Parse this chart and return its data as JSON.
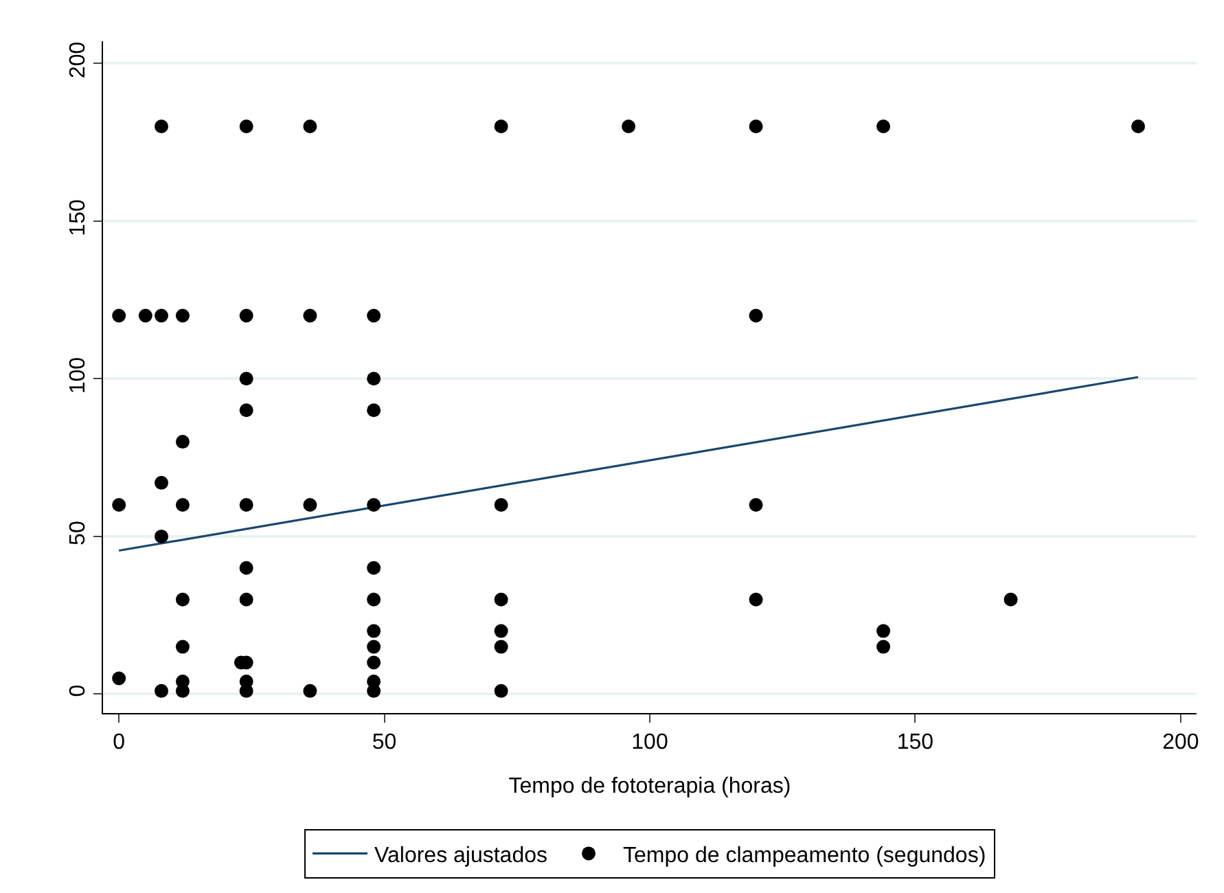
{
  "chart_data": {
    "type": "scatter",
    "xlabel": "Tempo de fototerapia (horas)",
    "xlim": [
      -3,
      203
    ],
    "ylim": [
      -6,
      207
    ],
    "xticks": [
      0,
      50,
      100,
      150,
      200
    ],
    "yticks": [
      0,
      50,
      100,
      150,
      200
    ],
    "grid": "y",
    "legend": "bottom",
    "marker": "circle",
    "series": [
      {
        "name": "Valores ajustados",
        "type": "line",
        "color": "#1a476f",
        "line_style": "solid",
        "marker": "none",
        "x": [
          0,
          192
        ],
        "values": [
          45.5,
          100.5
        ]
      },
      {
        "name": "Tempo de clampeamento (segundos)",
        "color": "#000000",
        "x": [
          8,
          24,
          36,
          72,
          96,
          120,
          144,
          192,
          0,
          5,
          8,
          12,
          24,
          36,
          48,
          120,
          24,
          48,
          24,
          48,
          12,
          8,
          0,
          12,
          24,
          36,
          48,
          72,
          120,
          8,
          24,
          48,
          12,
          24,
          48,
          72,
          120,
          168,
          48,
          72,
          144,
          12,
          48,
          72,
          144,
          23,
          24,
          48,
          0,
          12,
          24,
          48,
          8,
          12,
          24,
          36,
          48,
          72
        ],
        "values": [
          180,
          180,
          180,
          180,
          180,
          180,
          180,
          180,
          120,
          120,
          120,
          120,
          120,
          120,
          120,
          120,
          100,
          100,
          90,
          90,
          80,
          67,
          60,
          60,
          60,
          60,
          60,
          60,
          60,
          50,
          40,
          40,
          30,
          30,
          30,
          30,
          30,
          30,
          20,
          20,
          20,
          15,
          15,
          15,
          15,
          10,
          10,
          10,
          5,
          4,
          4,
          4,
          1,
          1,
          1,
          1,
          1,
          1
        ]
      }
    ]
  }
}
